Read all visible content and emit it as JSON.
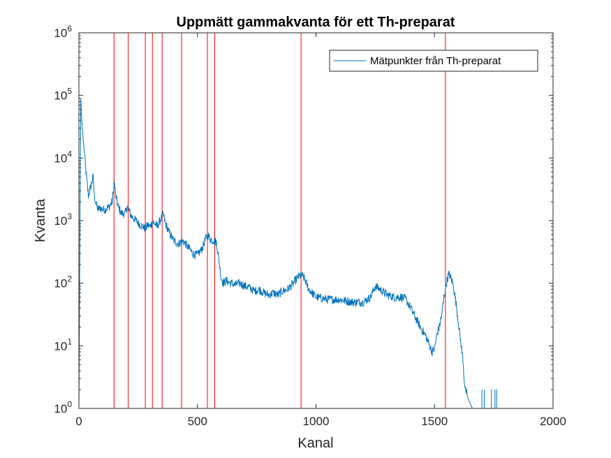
{
  "chart_data": {
    "type": "line",
    "title": "Uppmätt gammakvanta för ett Th-preparat",
    "xlabel": "Kanal",
    "ylabel": "Kvanta",
    "xlim": [
      0,
      2000
    ],
    "ylim": [
      1,
      1000000
    ],
    "yscale": "log",
    "grid": false,
    "legend_position": "top-right",
    "x_ticks": [
      0,
      500,
      1000,
      1500,
      2000
    ],
    "x_tick_labels": [
      "0",
      "500",
      "1000",
      "1500",
      "2000"
    ],
    "y_ticks": [
      1,
      10,
      100,
      1000,
      10000,
      100000,
      1000000
    ],
    "y_tick_exponents": [
      "0",
      "1",
      "2",
      "3",
      "4",
      "5",
      "6"
    ],
    "y_tick_base": "10",
    "series": [
      {
        "name": "Mätpunkter från Th-preparat",
        "color": "#0072BD",
        "x": [
          0,
          5,
          8,
          12,
          18,
          25,
          30,
          40,
          50,
          60,
          65,
          70,
          80,
          90,
          100,
          110,
          120,
          130,
          140,
          145,
          150,
          155,
          165,
          180,
          195,
          205,
          210,
          220,
          240,
          260,
          280,
          290,
          300,
          310,
          320,
          330,
          345,
          355,
          365,
          380,
          400,
          420,
          430,
          440,
          460,
          480,
          500,
          520,
          535,
          545,
          555,
          570,
          580,
          590,
          600,
          610,
          620,
          640,
          660,
          680,
          700,
          720,
          740,
          760,
          780,
          800,
          820,
          840,
          860,
          880,
          900,
          920,
          930,
          940,
          950,
          970,
          1000,
          1050,
          1100,
          1150,
          1200,
          1230,
          1250,
          1270,
          1300,
          1330,
          1360,
          1380,
          1400,
          1420,
          1440,
          1460,
          1480,
          1490,
          1500,
          1510,
          1520,
          1530,
          1540,
          1550,
          1560,
          1570,
          1580,
          1590,
          1600,
          1610,
          1620,
          1625,
          1630,
          1640,
          1650,
          1660,
          1665
        ],
        "y": [
          1,
          2000,
          90000,
          40000,
          20000,
          10000,
          6000,
          2500,
          3500,
          5000,
          2500,
          2000,
          1500,
          1600,
          1500,
          1500,
          1600,
          1700,
          2000,
          2800,
          4000,
          2500,
          1700,
          1300,
          1300,
          1700,
          1500,
          1200,
          1000,
          850,
          750,
          850,
          800,
          950,
          900,
          800,
          1050,
          1250,
          900,
          650,
          480,
          430,
          450,
          470,
          380,
          300,
          280,
          360,
          520,
          580,
          500,
          480,
          450,
          250,
          120,
          100,
          110,
          100,
          95,
          100,
          90,
          85,
          75,
          80,
          70,
          65,
          70,
          65,
          75,
          80,
          95,
          120,
          130,
          135,
          120,
          80,
          60,
          55,
          55,
          50,
          50,
          60,
          90,
          80,
          65,
          60,
          60,
          55,
          40,
          28,
          20,
          15,
          10,
          8,
          9,
          15,
          20,
          30,
          60,
          100,
          140,
          120,
          90,
          50,
          25,
          12,
          6,
          3,
          2,
          1.5,
          1.2,
          1,
          1
        ]
      }
    ],
    "reference_lines_x": [
      148,
      208,
      280,
      310,
      351,
      433,
      542,
      573,
      937,
      1546
    ],
    "reference_line_color": "#FF0000"
  }
}
